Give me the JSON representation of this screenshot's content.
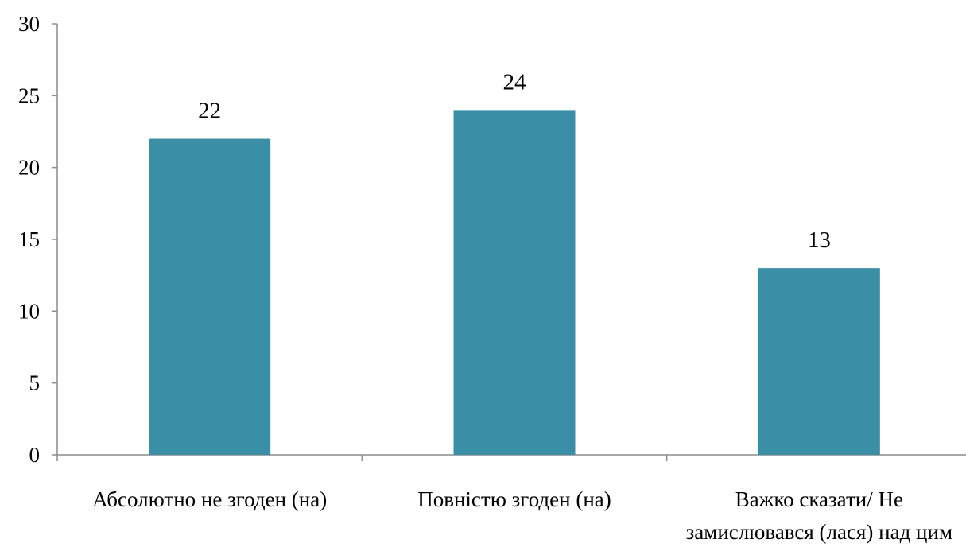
{
  "chart_data": {
    "type": "bar",
    "title": "",
    "xlabel": "",
    "ylabel": "",
    "ylim": [
      0,
      30
    ],
    "yticks": [
      0,
      5,
      10,
      15,
      20,
      25,
      30
    ],
    "grid": false,
    "categories": [
      [
        "Абсолютно не згоден (на)"
      ],
      [
        "Повністю згоден (на)"
      ],
      [
        "Важко сказати/ Не",
        "замислювався (лася) над цим"
      ]
    ],
    "values": [
      22,
      24,
      13
    ],
    "data_labels": [
      "22",
      "24",
      "13"
    ],
    "bar_color": "#3A8FA6"
  }
}
